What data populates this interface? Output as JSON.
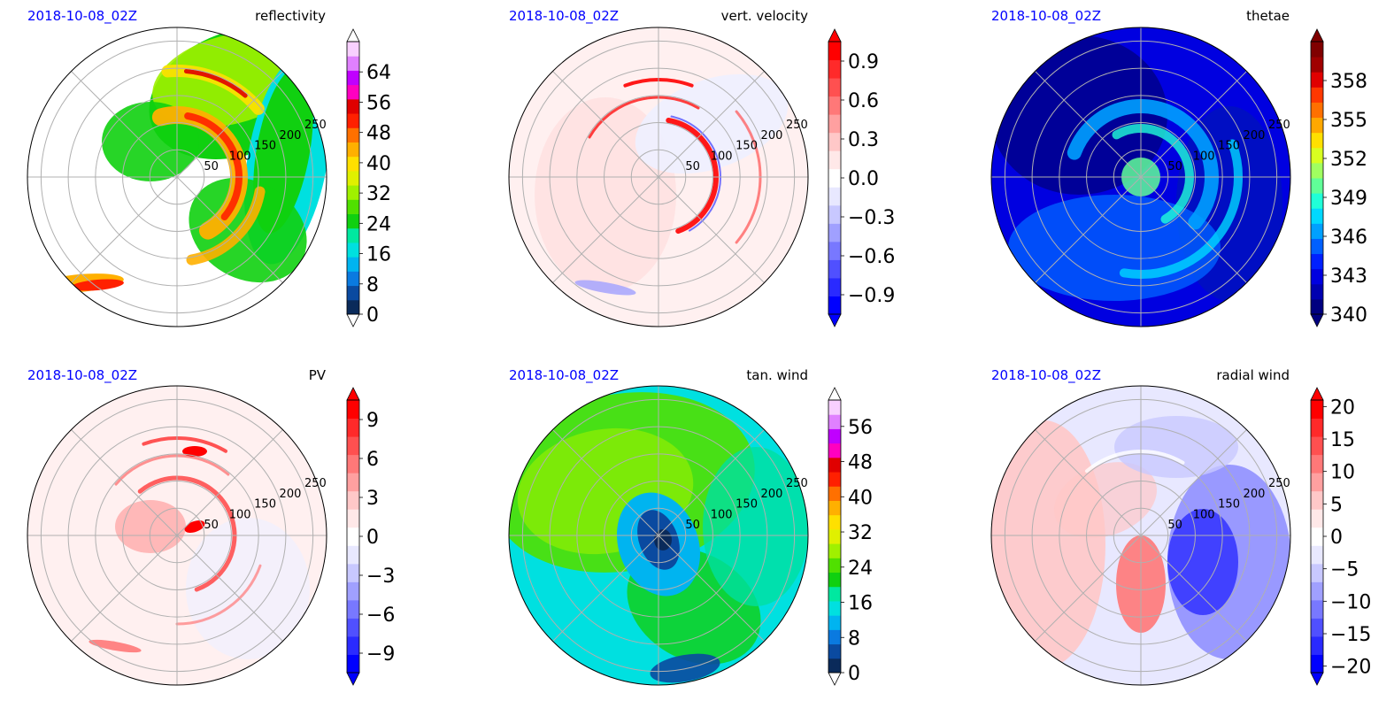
{
  "figure": {
    "panels": [
      {
        "date": "2018-10-08_02Z",
        "title": "reflectivity",
        "ring_labels": [
          "50",
          "100",
          "150",
          "200",
          "250"
        ],
        "colorbar": {
          "ticks": [
            "0",
            "8",
            "16",
            "24",
            "32",
            "40",
            "48",
            "56",
            "64"
          ],
          "tick_values": [
            0,
            8,
            16,
            24,
            32,
            40,
            48,
            56,
            64
          ],
          "range": [
            0,
            72
          ],
          "colors": [
            "#0a2a5a",
            "#0a4aa0",
            "#0a7ae0",
            "#00b4f0",
            "#00e0e0",
            "#00e8a0",
            "#10d010",
            "#50e000",
            "#a0f000",
            "#e0f000",
            "#ffe000",
            "#ffb000",
            "#ff7000",
            "#ff2000",
            "#e00000",
            "#ff00c0",
            "#c000ff",
            "#e080ff",
            "#f8d0ff"
          ],
          "extend": [
            "both-white"
          ]
        }
      },
      {
        "date": "2018-10-08_02Z",
        "title": "vert. velocity",
        "ring_labels": [
          "50",
          "100",
          "150",
          "200",
          "250"
        ],
        "colorbar": {
          "ticks": [
            "−0.9",
            "−0.6",
            "−0.3",
            "0.0",
            "0.3",
            "0.6",
            "0.9"
          ],
          "tick_values": [
            -0.9,
            -0.6,
            -0.3,
            0,
            0.3,
            0.6,
            0.9
          ],
          "range": [
            -1.05,
            1.05
          ],
          "colors": [
            "#0000ff",
            "#2a2aff",
            "#5050ff",
            "#7878ff",
            "#a0a0ff",
            "#c8c8ff",
            "#e8e8ff",
            "#ffffff",
            "#ffe8e8",
            "#ffc8c8",
            "#ffa0a0",
            "#ff7878",
            "#ff5050",
            "#ff2a2a",
            "#ff0000"
          ],
          "extend": [
            "both-color"
          ]
        }
      },
      {
        "date": "2018-10-08_02Z",
        "title": "thetae",
        "ring_labels": [
          "50",
          "100",
          "150",
          "200",
          "250"
        ],
        "colorbar": {
          "ticks": [
            "340",
            "343",
            "346",
            "349",
            "352",
            "355",
            "358"
          ],
          "tick_values": [
            340,
            343,
            346,
            349,
            352,
            355,
            358
          ],
          "range": [
            340,
            361
          ],
          "colors": [
            "#000080",
            "#0000b0",
            "#0000e0",
            "#0020ff",
            "#0060ff",
            "#00a0ff",
            "#00d8ff",
            "#20ffd8",
            "#60ff98",
            "#a0ff60",
            "#d8ff20",
            "#ffe000",
            "#ffa800",
            "#ff7000",
            "#ff3800",
            "#e00000",
            "#a00000",
            "#800000"
          ],
          "extend": [
            "both-color"
          ]
        }
      },
      {
        "date": "2018-10-08_02Z",
        "title": "PV",
        "ring_labels": [
          "50",
          "100",
          "150",
          "200",
          "250"
        ],
        "colorbar": {
          "ticks": [
            "−9",
            "−6",
            "−3",
            "0",
            "3",
            "6",
            "9"
          ],
          "tick_values": [
            -9,
            -6,
            -3,
            0,
            3,
            6,
            9
          ],
          "range": [
            -10.5,
            10.5
          ],
          "colors": [
            "#0000ff",
            "#2a2aff",
            "#5050ff",
            "#7878ff",
            "#a0a0ff",
            "#c8c8ff",
            "#e8e8ff",
            "#ffffff",
            "#ffe8e8",
            "#ffc8c8",
            "#ffa0a0",
            "#ff7878",
            "#ff5050",
            "#ff2a2a",
            "#ff0000"
          ],
          "extend": [
            "both-color"
          ]
        }
      },
      {
        "date": "2018-10-08_02Z",
        "title": "tan. wind",
        "ring_labels": [
          "50",
          "100",
          "150",
          "200",
          "250"
        ],
        "colorbar": {
          "ticks": [
            "0",
            "8",
            "16",
            "24",
            "32",
            "40",
            "48",
            "56"
          ],
          "tick_values": [
            0,
            8,
            16,
            24,
            32,
            40,
            48,
            56
          ],
          "range": [
            0,
            62
          ],
          "colors": [
            "#0a2a5a",
            "#0a4aa0",
            "#0a7ae0",
            "#00b4f0",
            "#00e0e0",
            "#00e8a0",
            "#10d010",
            "#50e000",
            "#a0f000",
            "#e0f000",
            "#ffe000",
            "#ffb000",
            "#ff7000",
            "#ff2000",
            "#e00000",
            "#ff00c0",
            "#c000ff",
            "#e080ff",
            "#f8d0ff"
          ],
          "extend": [
            "both-white"
          ]
        }
      },
      {
        "date": "2018-10-08_02Z",
        "title": "radial wind",
        "ring_labels": [
          "50",
          "100",
          "150",
          "200",
          "250"
        ],
        "colorbar": {
          "ticks": [
            "−20",
            "−15",
            "−10",
            "−5",
            "0",
            "5",
            "10",
            "15",
            "20"
          ],
          "tick_values": [
            -20,
            -15,
            -10,
            -5,
            0,
            5,
            10,
            15,
            20
          ],
          "range": [
            -21,
            21
          ],
          "colors": [
            "#0000ff",
            "#2a2aff",
            "#5050ff",
            "#7878ff",
            "#a0a0ff",
            "#c8c8ff",
            "#e8e8ff",
            "#ffffff",
            "#ffe8e8",
            "#ffc8c8",
            "#ffa0a0",
            "#ff7878",
            "#ff5050",
            "#ff2a2a",
            "#ff0000"
          ],
          "extend": [
            "both-color"
          ]
        }
      }
    ]
  },
  "chart_data": [
    {
      "type": "heatmap",
      "projection": "polar",
      "title": "reflectivity",
      "annotation": "2018-10-08_02Z",
      "radial_ticks": [
        50,
        100,
        150,
        200,
        250
      ],
      "colorbar_ticks": [
        0,
        8,
        16,
        24,
        32,
        40,
        48,
        56,
        64
      ],
      "grid": true
    },
    {
      "type": "heatmap",
      "projection": "polar",
      "title": "vert. velocity",
      "annotation": "2018-10-08_02Z",
      "radial_ticks": [
        50,
        100,
        150,
        200,
        250
      ],
      "colorbar_ticks": [
        -0.9,
        -0.6,
        -0.3,
        0.0,
        0.3,
        0.6,
        0.9
      ],
      "grid": true
    },
    {
      "type": "heatmap",
      "projection": "polar",
      "title": "thetae",
      "annotation": "2018-10-08_02Z",
      "radial_ticks": [
        50,
        100,
        150,
        200,
        250
      ],
      "colorbar_ticks": [
        340,
        343,
        346,
        349,
        352,
        355,
        358
      ],
      "grid": true
    },
    {
      "type": "heatmap",
      "projection": "polar",
      "title": "PV",
      "annotation": "2018-10-08_02Z",
      "radial_ticks": [
        50,
        100,
        150,
        200,
        250
      ],
      "colorbar_ticks": [
        -9,
        -6,
        -3,
        0,
        3,
        6,
        9
      ],
      "grid": true
    },
    {
      "type": "heatmap",
      "projection": "polar",
      "title": "tan. wind",
      "annotation": "2018-10-08_02Z",
      "radial_ticks": [
        50,
        100,
        150,
        200,
        250
      ],
      "colorbar_ticks": [
        0,
        8,
        16,
        24,
        32,
        40,
        48,
        56
      ],
      "grid": true
    },
    {
      "type": "heatmap",
      "projection": "polar",
      "title": "radial wind",
      "annotation": "2018-10-08_02Z",
      "radial_ticks": [
        50,
        100,
        150,
        200,
        250
      ],
      "colorbar_ticks": [
        -20,
        -15,
        -10,
        -5,
        0,
        5,
        10,
        15,
        20
      ],
      "grid": true
    }
  ]
}
